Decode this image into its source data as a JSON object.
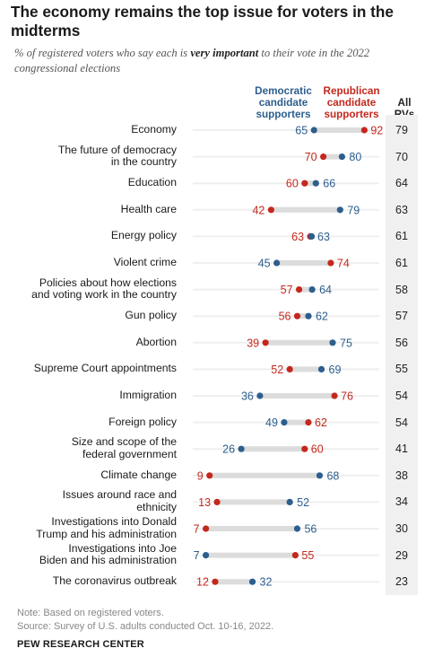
{
  "title": "The economy remains the top issue for voters in the midterms",
  "subtitle_pre": "% of registered voters who say each is ",
  "subtitle_bold": "very important",
  "subtitle_post": " to their vote in the 2022 congressional elections",
  "legend": {
    "dem": "Democratic candidate supporters",
    "rep": "Republican candidate supporters",
    "all": "All RVs"
  },
  "note": "Note: Based on registered voters.",
  "source": "Source: Survey of U.S. adults conducted Oct. 10-16, 2022.",
  "org": "PEW RESEARCH CENTER",
  "colors": {
    "dem": "#2c5e8e",
    "rep": "#c4281d",
    "bar": "#dcdcdc"
  },
  "chart_data": {
    "type": "dot-plot",
    "series": [
      {
        "name": "Democratic candidate supporters",
        "key": "dem"
      },
      {
        "name": "Republican candidate supporters",
        "key": "rep"
      },
      {
        "name": "All RVs",
        "key": "all"
      }
    ],
    "rows": [
      {
        "label": "Economy",
        "dem": 65,
        "rep": 92,
        "all": 79
      },
      {
        "label": "The future of democracy in the country",
        "dem": 80,
        "rep": 70,
        "all": 70
      },
      {
        "label": "Education",
        "dem": 66,
        "rep": 60,
        "all": 64
      },
      {
        "label": "Health care",
        "dem": 79,
        "rep": 42,
        "all": 63
      },
      {
        "label": "Energy policy",
        "dem": 63,
        "rep": 63,
        "all": 61
      },
      {
        "label": "Violent crime",
        "dem": 45,
        "rep": 74,
        "all": 61
      },
      {
        "label": "Policies about how elections and voting work in the country",
        "dem": 64,
        "rep": 57,
        "all": 58
      },
      {
        "label": "Gun policy",
        "dem": 62,
        "rep": 56,
        "all": 57
      },
      {
        "label": "Abortion",
        "dem": 75,
        "rep": 39,
        "all": 56
      },
      {
        "label": "Supreme Court appointments",
        "dem": 69,
        "rep": 52,
        "all": 55
      },
      {
        "label": "Immigration",
        "dem": 36,
        "rep": 76,
        "all": 54
      },
      {
        "label": "Foreign policy",
        "dem": 49,
        "rep": 62,
        "all": 54
      },
      {
        "label": "Size and scope of the federal government",
        "dem": 26,
        "rep": 60,
        "all": 41
      },
      {
        "label": "Climate change",
        "dem": 68,
        "rep": 9,
        "all": 38
      },
      {
        "label": "Issues around race and ethnicity",
        "dem": 52,
        "rep": 13,
        "all": 34
      },
      {
        "label": "Investigations into Donald Trump and his administration",
        "dem": 56,
        "rep": 7,
        "all": 30
      },
      {
        "label": "Investigations into Joe Biden and his administration",
        "dem": 7,
        "rep": 55,
        "all": 29
      },
      {
        "label": "The coronavirus outbreak",
        "dem": 32,
        "rep": 12,
        "all": 23
      }
    ]
  }
}
